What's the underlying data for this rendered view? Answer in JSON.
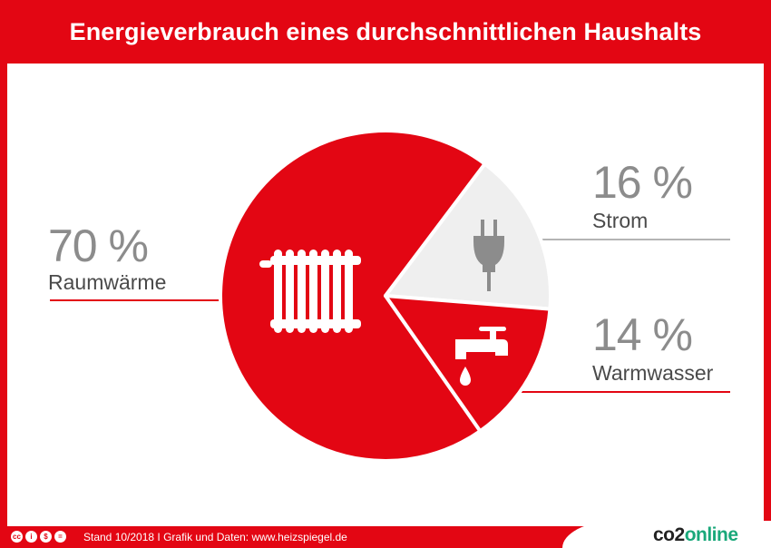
{
  "title": "Energieverbrauch eines durchschnittlichen Haushalts",
  "chart_data": {
    "type": "pie",
    "slices": [
      {
        "label": "Raumwärme",
        "value": 70,
        "value_text": "70 %",
        "color": "#e30613",
        "icon": "radiator-icon"
      },
      {
        "label": "Strom",
        "value": 16,
        "value_text": "16 %",
        "color": "#efefef",
        "icon": "plug-icon"
      },
      {
        "label": "Warmwasser",
        "value": 14,
        "value_text": "14 %",
        "color": "#e30613",
        "icon": "faucet-icon"
      }
    ],
    "leader_colors": {
      "Raumwärme": "#e30613",
      "Strom": "#b4b4b4",
      "Warmwasser": "#e30613"
    }
  },
  "footer": {
    "license_icons": [
      "cc",
      "by",
      "nc",
      "nd"
    ],
    "text": "Stand 10/2018   I   Grafik und Daten: www.heizspiegel.de",
    "brand_prefix": "co2",
    "brand_suffix": "online"
  }
}
